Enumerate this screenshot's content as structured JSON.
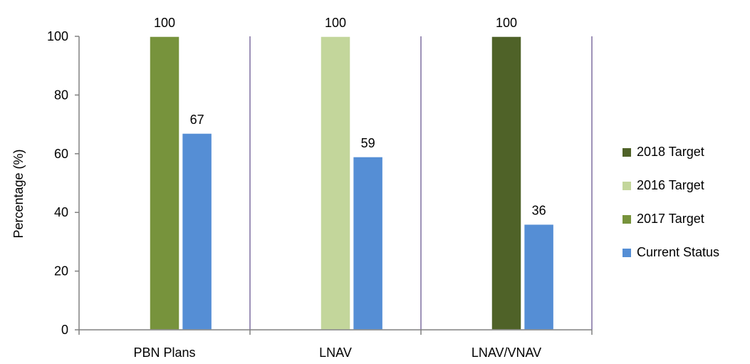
{
  "chart_data": {
    "type": "bar",
    "title": "",
    "xlabel": "",
    "ylabel": "Percentage (%)",
    "ylim": [
      0,
      100
    ],
    "yticks": [
      0,
      20,
      40,
      60,
      80,
      100
    ],
    "grid": false,
    "legend_position": "right",
    "categories": [
      "PBN Plans",
      "LNAV",
      "LNAV/VNAV"
    ],
    "series": [
      {
        "name": "2018 Target",
        "color": "#4f6228",
        "values": [
          null,
          null,
          100
        ]
      },
      {
        "name": "2016 Target",
        "color": "#c3d69b",
        "values": [
          null,
          100,
          null
        ]
      },
      {
        "name": "2017 Target",
        "color": "#77933c",
        "values": [
          100,
          null,
          null
        ]
      },
      {
        "name": "Current Status",
        "color": "#558ed5",
        "values": [
          67,
          59,
          36
        ]
      }
    ],
    "bars": [
      {
        "category": "PBN Plans",
        "series": "2017 Target",
        "value": 100,
        "label": "100"
      },
      {
        "category": "PBN Plans",
        "series": "Current Status",
        "value": 67,
        "label": "67"
      },
      {
        "category": "LNAV",
        "series": "2016 Target",
        "value": 100,
        "label": "100"
      },
      {
        "category": "LNAV",
        "series": "Current Status",
        "value": 59,
        "label": "59"
      },
      {
        "category": "LNAV/VNAV",
        "series": "2018 Target",
        "value": 100,
        "label": "100"
      },
      {
        "category": "LNAV/VNAV",
        "series": "Current Status",
        "value": 36,
        "label": "36"
      }
    ]
  }
}
